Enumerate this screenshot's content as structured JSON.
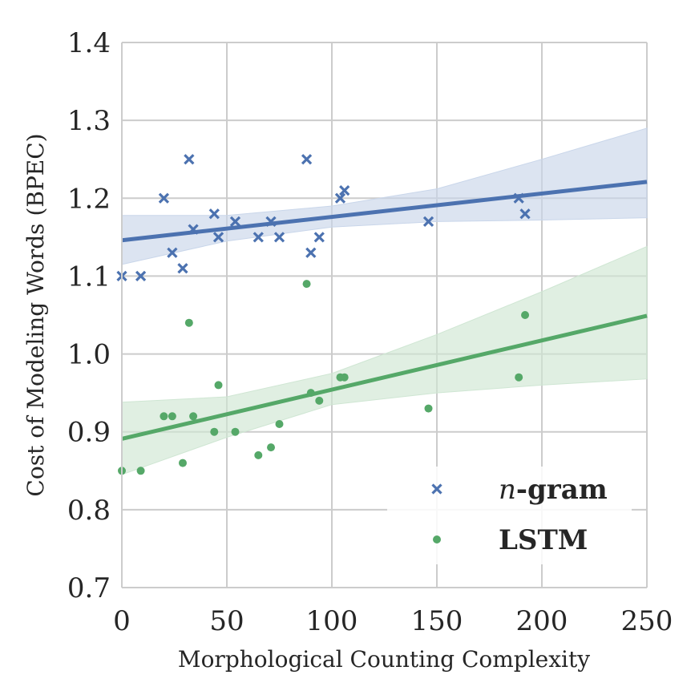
{
  "chart_data": {
    "type": "scatter",
    "title": "",
    "xlabel": "Morphological Counting Complexity",
    "ylabel": "Cost of Modeling Words (BPEC)",
    "xlim": [
      0,
      250
    ],
    "ylim": [
      0.7,
      1.4
    ],
    "x_ticks": [
      0,
      50,
      100,
      150,
      200,
      250
    ],
    "x_tick_labels": [
      "0",
      "50",
      "100",
      "150",
      "200",
      "250"
    ],
    "y_ticks": [
      0.7,
      0.8,
      0.9,
      1.0,
      1.1,
      1.2,
      1.3,
      1.4
    ],
    "y_tick_labels": [
      "0.7",
      "0.8",
      "0.9",
      "1.0",
      "1.1",
      "1.2",
      "1.3",
      "1.4"
    ],
    "grid": true,
    "legend_position": "bottom-right",
    "series": [
      {
        "name": "n-gram",
        "legend_prefix": "n",
        "legend_suffix": "-gram",
        "marker": "x",
        "color": "#4c72b0",
        "band_color": "#c9d6ea",
        "x": [
          0,
          9,
          20,
          24,
          29,
          32,
          34,
          44,
          46,
          54,
          65,
          71,
          75,
          88,
          90,
          94,
          104,
          106,
          146,
          189,
          192
        ],
        "y": [
          1.1,
          1.1,
          1.2,
          1.13,
          1.11,
          1.25,
          1.16,
          1.18,
          1.15,
          1.17,
          1.15,
          1.17,
          1.15,
          1.25,
          1.13,
          1.15,
          1.2,
          1.21,
          1.17,
          1.2,
          1.18
        ],
        "regression": {
          "x": [
            0,
            250
          ],
          "y": [
            1.146,
            1.221
          ]
        },
        "ci_band": {
          "x": [
            0,
            50,
            100,
            150,
            200,
            250
          ],
          "upper": [
            1.178,
            1.178,
            1.19,
            1.212,
            1.25,
            1.29
          ],
          "lower": [
            1.115,
            1.145,
            1.163,
            1.17,
            1.172,
            1.175
          ]
        }
      },
      {
        "name": "LSTM",
        "marker": "o",
        "color": "#55a868",
        "band_color": "#cfe6d3",
        "x": [
          0,
          9,
          20,
          24,
          29,
          32,
          34,
          44,
          46,
          54,
          65,
          71,
          75,
          88,
          90,
          94,
          104,
          106,
          146,
          189,
          192
        ],
        "y": [
          0.85,
          0.85,
          0.92,
          0.92,
          0.86,
          1.04,
          0.92,
          0.9,
          0.96,
          0.9,
          0.87,
          0.88,
          0.91,
          1.09,
          0.95,
          0.94,
          0.97,
          0.97,
          0.93,
          0.97,
          1.05
        ],
        "regression": {
          "x": [
            0,
            250
          ],
          "y": [
            0.891,
            1.049
          ]
        },
        "ci_band": {
          "x": [
            0,
            50,
            100,
            150,
            200,
            250
          ],
          "upper": [
            0.938,
            0.945,
            0.975,
            1.025,
            1.08,
            1.138
          ],
          "lower": [
            0.845,
            0.893,
            0.935,
            0.95,
            0.96,
            0.968
          ]
        }
      }
    ]
  }
}
